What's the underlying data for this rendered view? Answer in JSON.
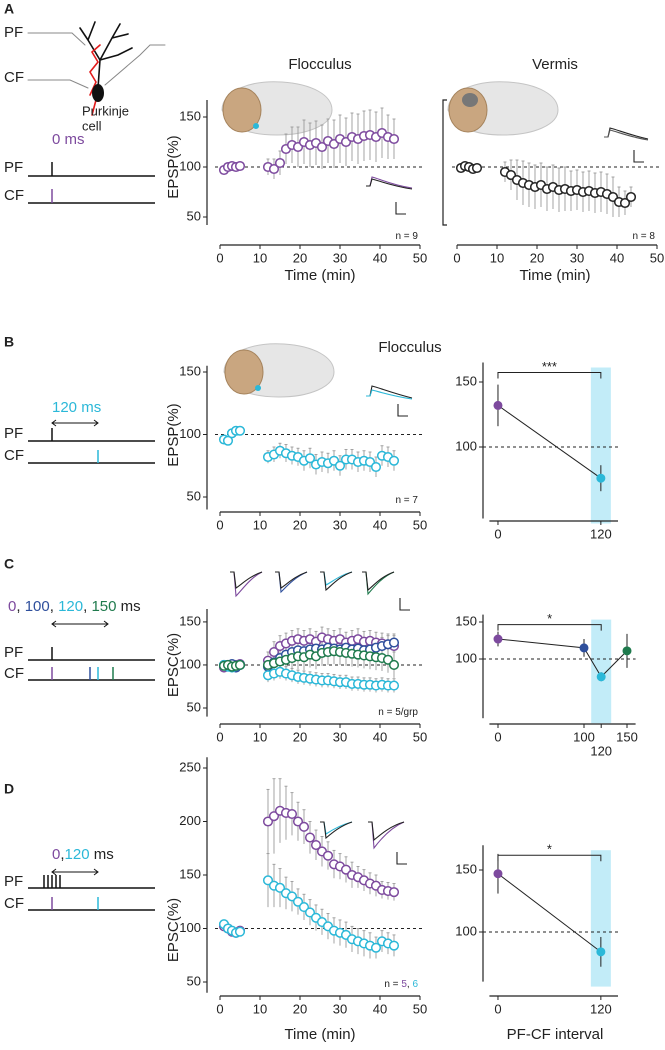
{
  "panel_labels": [
    "A",
    "B",
    "C",
    "D"
  ],
  "section_title": "Flocculus",
  "schematic": {
    "A": {
      "cell_tracks": [
        "PF",
        "CF"
      ],
      "cell_label": [
        "Purkinje",
        "cell"
      ],
      "timing": [
        {
          "text": "0 ms",
          "color": "#7d4a9e"
        }
      ],
      "tracks": [
        "PF",
        "CF"
      ]
    },
    "B": {
      "timing": [
        {
          "text": "120 ms",
          "color": "#2bb8d8"
        }
      ],
      "tracks": [
        "PF",
        "CF"
      ]
    },
    "C": {
      "timing": [
        {
          "text": "0",
          "color": "#7d4a9e"
        },
        {
          "text": ", "
        },
        {
          "text": "100",
          "color": "#2e4f9c"
        },
        {
          "text": ", "
        },
        {
          "text": "120",
          "color": "#2bb8d8"
        },
        {
          "text": ", "
        },
        {
          "text": "150",
          "color": "#1f7a4d"
        },
        {
          "text": " ms"
        }
      ],
      "tracks": [
        "PF",
        "CF"
      ]
    },
    "D": {
      "timing": [
        {
          "text": "0",
          "color": "#7d4a9e"
        },
        {
          "text": ","
        },
        {
          "text": "120",
          "color": "#2bb8d8"
        },
        {
          "text": " ms"
        }
      ],
      "tracks": [
        "PF",
        "CF"
      ]
    }
  },
  "chart_data": [
    {
      "type": "scatter",
      "title": "Flocculus",
      "xlabel": "Time (min)",
      "ylabel": "EPSP(%)",
      "xlim": [
        0,
        50
      ],
      "xticks": [
        0,
        10,
        20,
        30,
        40,
        50
      ],
      "ylim": [
        42,
        167
      ],
      "yticks": [
        50,
        100,
        150
      ],
      "reference_line": 100,
      "x": [
        1,
        2,
        3,
        4,
        5,
        12,
        13.5,
        15,
        16.5,
        18,
        19.5,
        21,
        22.5,
        24,
        25.5,
        27,
        28.5,
        30,
        31.5,
        33,
        34.5,
        36,
        37.5,
        39,
        40.5,
        42,
        43.5
      ],
      "series": [
        {
          "color": "#7d4a9e",
          "values": [
            97,
            100,
            101,
            100,
            101,
            100,
            98,
            104,
            118,
            122,
            120,
            125,
            122,
            124,
            120,
            126,
            123,
            128,
            125,
            130,
            128,
            131,
            132,
            130,
            134,
            130,
            128
          ],
          "errors": [
            3,
            3,
            2,
            2,
            2,
            8,
            10,
            12,
            15,
            18,
            20,
            22,
            22,
            22,
            22,
            22,
            24,
            24,
            24,
            24,
            25,
            25,
            25,
            25,
            25,
            22,
            20
          ]
        }
      ],
      "annotation": [
        {
          "text": "n = 9"
        }
      ]
    },
    {
      "type": "scatter",
      "title": "Vermis",
      "xlabel": "Time (min)",
      "xlim": [
        0,
        50
      ],
      "xticks": [
        0,
        10,
        20,
        30,
        40,
        50
      ],
      "ylim": [
        42,
        167
      ],
      "reference_line": 100,
      "x": [
        1,
        2,
        3,
        4,
        5,
        12,
        13.5,
        15,
        16.5,
        18,
        19.5,
        21,
        22.5,
        24,
        25.5,
        27,
        28.5,
        30,
        31.5,
        33,
        34.5,
        36,
        37.5,
        39,
        40.5,
        42,
        43.5
      ],
      "series": [
        {
          "color": "#222222",
          "values": [
            99,
            101,
            100,
            98,
            99,
            95,
            92,
            87,
            84,
            82,
            80,
            82,
            78,
            80,
            77,
            78,
            76,
            77,
            75,
            76,
            74,
            75,
            73,
            70,
            65,
            64,
            70
          ],
          "errors": [
            3,
            3,
            3,
            3,
            3,
            10,
            15,
            20,
            22,
            22,
            22,
            22,
            22,
            22,
            22,
            22,
            20,
            20,
            20,
            20,
            20,
            20,
            20,
            20,
            15,
            12,
            10
          ]
        }
      ],
      "annotation": [
        {
          "text": "n = 8"
        }
      ]
    },
    {
      "type": "scatter",
      "ylabel": "EPSP(%)",
      "xlim": [
        0,
        50
      ],
      "xticks": [
        0,
        10,
        20,
        30,
        40,
        50
      ],
      "ylim": [
        40,
        155
      ],
      "yticks": [
        50,
        100,
        150
      ],
      "reference_line": 100,
      "x": [
        1,
        2,
        3,
        4,
        5,
        12,
        13.5,
        15,
        16.5,
        18,
        19.5,
        21,
        22.5,
        24,
        25.5,
        27,
        28.5,
        30,
        31.5,
        33,
        34.5,
        36,
        37.5,
        39,
        40.5,
        42,
        43.5
      ],
      "series": [
        {
          "color": "#2bb8d8",
          "values": [
            96,
            95,
            101,
            103,
            103,
            82,
            84,
            87,
            85,
            83,
            82,
            79,
            81,
            76,
            78,
            77,
            79,
            75,
            80,
            80,
            78,
            79,
            78,
            74,
            83,
            82,
            79
          ],
          "errors": [
            2,
            2,
            2,
            2,
            2,
            5,
            6,
            6,
            7,
            7,
            7,
            8,
            8,
            8,
            8,
            8,
            8,
            8,
            8,
            8,
            8,
            8,
            8,
            8,
            8,
            8,
            8
          ]
        }
      ],
      "annotation": [
        {
          "text": "n = 7"
        }
      ]
    },
    {
      "type": "scatter",
      "ylabel": "EPSC(%)",
      "xlim": [
        0,
        50
      ],
      "xticks": [
        0,
        10,
        20,
        30,
        40,
        50
      ],
      "ylim": [
        40,
        165
      ],
      "yticks": [
        50,
        100,
        150
      ],
      "reference_line": 100,
      "x": [
        1,
        2,
        3,
        4,
        5,
        12,
        13.5,
        15,
        16.5,
        18,
        19.5,
        21,
        22.5,
        24,
        25.5,
        27,
        28.5,
        30,
        31.5,
        33,
        34.5,
        36,
        37.5,
        39,
        40.5,
        42,
        43.5
      ],
      "series": [
        {
          "color": "#7d4a9e",
          "values": [
            97,
            100,
            98,
            100,
            101,
            105,
            115,
            122,
            125,
            128,
            130,
            128,
            130,
            127,
            132,
            130,
            128,
            130,
            126,
            128,
            130,
            127,
            128,
            126,
            125,
            124,
            122
          ],
          "errors": [
            3,
            3,
            3,
            3,
            3,
            10,
            12,
            12,
            12,
            12,
            12,
            12,
            12,
            12,
            12,
            12,
            12,
            12,
            12,
            12,
            12,
            12,
            12,
            12,
            12,
            12,
            12
          ]
        },
        {
          "color": "#2e4f9c",
          "values": [
            100,
            99,
            101,
            97,
            100,
            98,
            103,
            108,
            112,
            115,
            117,
            116,
            118,
            119,
            118,
            120,
            119,
            118,
            120,
            118,
            119,
            117,
            118,
            120,
            122,
            124,
            126
          ],
          "errors": [
            3,
            3,
            3,
            3,
            3,
            10,
            10,
            10,
            10,
            10,
            10,
            10,
            10,
            10,
            10,
            10,
            10,
            10,
            10,
            10,
            10,
            10,
            10,
            10,
            10,
            10,
            10
          ]
        },
        {
          "color": "#2bb8d8",
          "values": [
            100,
            98,
            97,
            99,
            100,
            88,
            90,
            92,
            90,
            88,
            86,
            85,
            84,
            83,
            82,
            82,
            81,
            80,
            80,
            78,
            78,
            77,
            77,
            76,
            77,
            76,
            76
          ],
          "errors": [
            3,
            3,
            3,
            3,
            3,
            8,
            8,
            8,
            8,
            8,
            8,
            8,
            8,
            8,
            8,
            8,
            8,
            8,
            8,
            8,
            8,
            8,
            8,
            8,
            8,
            8,
            8
          ]
        },
        {
          "color": "#1f7a4d",
          "values": [
            99,
            100,
            98,
            99,
            100,
            100,
            102,
            104,
            106,
            108,
            110,
            109,
            112,
            110,
            114,
            115,
            116,
            115,
            114,
            113,
            112,
            111,
            110,
            109,
            108,
            106,
            100
          ],
          "errors": [
            3,
            3,
            3,
            3,
            3,
            15,
            15,
            15,
            15,
            15,
            15,
            15,
            15,
            15,
            15,
            15,
            15,
            15,
            15,
            15,
            15,
            15,
            15,
            15,
            15,
            15,
            15
          ]
        }
      ],
      "annotation": [
        {
          "text": "n = 5/grp"
        }
      ]
    },
    {
      "type": "scatter",
      "xlabel": "Time (min)",
      "ylabel": "EPSC(%)",
      "xlim": [
        0,
        50
      ],
      "xticks": [
        0,
        10,
        20,
        30,
        40,
        50
      ],
      "ylim": [
        40,
        260
      ],
      "yticks": [
        50,
        100,
        150,
        200,
        250
      ],
      "reference_line": 100,
      "x": [
        1,
        2,
        3,
        4,
        5,
        12,
        13.5,
        15,
        16.5,
        18,
        19.5,
        21,
        22.5,
        24,
        25.5,
        27,
        28.5,
        30,
        31.5,
        33,
        34.5,
        36,
        37.5,
        39,
        40.5,
        42,
        43.5
      ],
      "series": [
        {
          "color": "#7d4a9e",
          "values": [
            102,
            100,
            97,
            96,
            98,
            200,
            205,
            210,
            208,
            207,
            200,
            195,
            185,
            178,
            172,
            168,
            160,
            158,
            155,
            150,
            148,
            145,
            142,
            140,
            136,
            135,
            134
          ],
          "errors": [
            3,
            3,
            3,
            3,
            3,
            30,
            35,
            30,
            25,
            20,
            18,
            16,
            15,
            14,
            14,
            13,
            13,
            12,
            12,
            12,
            10,
            10,
            10,
            10,
            8,
            8,
            8
          ]
        },
        {
          "color": "#2bb8d8",
          "values": [
            104,
            100,
            98,
            96,
            97,
            145,
            140,
            138,
            133,
            130,
            125,
            120,
            115,
            110,
            106,
            102,
            98,
            96,
            94,
            90,
            88,
            86,
            84,
            82,
            88,
            86,
            84
          ],
          "errors": [
            3,
            3,
            3,
            3,
            3,
            25,
            20,
            18,
            15,
            14,
            12,
            12,
            12,
            12,
            12,
            12,
            12,
            12,
            12,
            12,
            12,
            12,
            12,
            10,
            10,
            10,
            10
          ]
        }
      ],
      "annotation": [
        {
          "text": "n = "
        },
        {
          "text": "5",
          "color": "#7d4a9e"
        },
        {
          "text": ", "
        },
        {
          "text": "6",
          "color": "#2bb8d8"
        }
      ]
    },
    {
      "type": "line",
      "xlim": [
        -10,
        140
      ],
      "xticks": [
        0,
        120
      ],
      "ylim": [
        45,
        165
      ],
      "yticks": [
        100,
        150
      ],
      "reference_line": 100,
      "x": [
        0,
        120
      ],
      "values": [
        132,
        76
      ],
      "errors": [
        16,
        10
      ],
      "colors": [
        "#7d4a9e",
        "#2bb8d8"
      ],
      "highlight_x": 120,
      "significance": {
        "label": "***",
        "x": [
          0,
          120
        ]
      }
    },
    {
      "type": "line",
      "xlim": [
        -10,
        160
      ],
      "xticks": [
        0,
        100,
        120,
        150
      ],
      "ylim": [
        20,
        160
      ],
      "yticks": [
        100,
        150
      ],
      "reference_line": 100,
      "x": [
        0,
        100,
        120,
        150
      ],
      "values": [
        127,
        115,
        76,
        111
      ],
      "errors": [
        10,
        12,
        6,
        23
      ],
      "colors": [
        "#7d4a9e",
        "#2e4f9c",
        "#2bb8d8",
        "#1f7a4d"
      ],
      "highlight_x": 120,
      "significance": {
        "label": "*",
        "x": [
          0,
          120
        ]
      }
    },
    {
      "type": "line",
      "xlabel": "PF-CF interval",
      "xlim": [
        -10,
        140
      ],
      "xticks": [
        0,
        120
      ],
      "ylim": [
        60,
        170
      ],
      "yticks": [
        100,
        150
      ],
      "reference_line": 100,
      "x": [
        0,
        120
      ],
      "values": [
        147,
        84
      ],
      "errors": [
        16,
        12
      ],
      "colors": [
        "#7d4a9e",
        "#2bb8d8"
      ],
      "highlight_x": 120,
      "significance": {
        "label": "*",
        "x": [
          0,
          120
        ]
      }
    }
  ]
}
